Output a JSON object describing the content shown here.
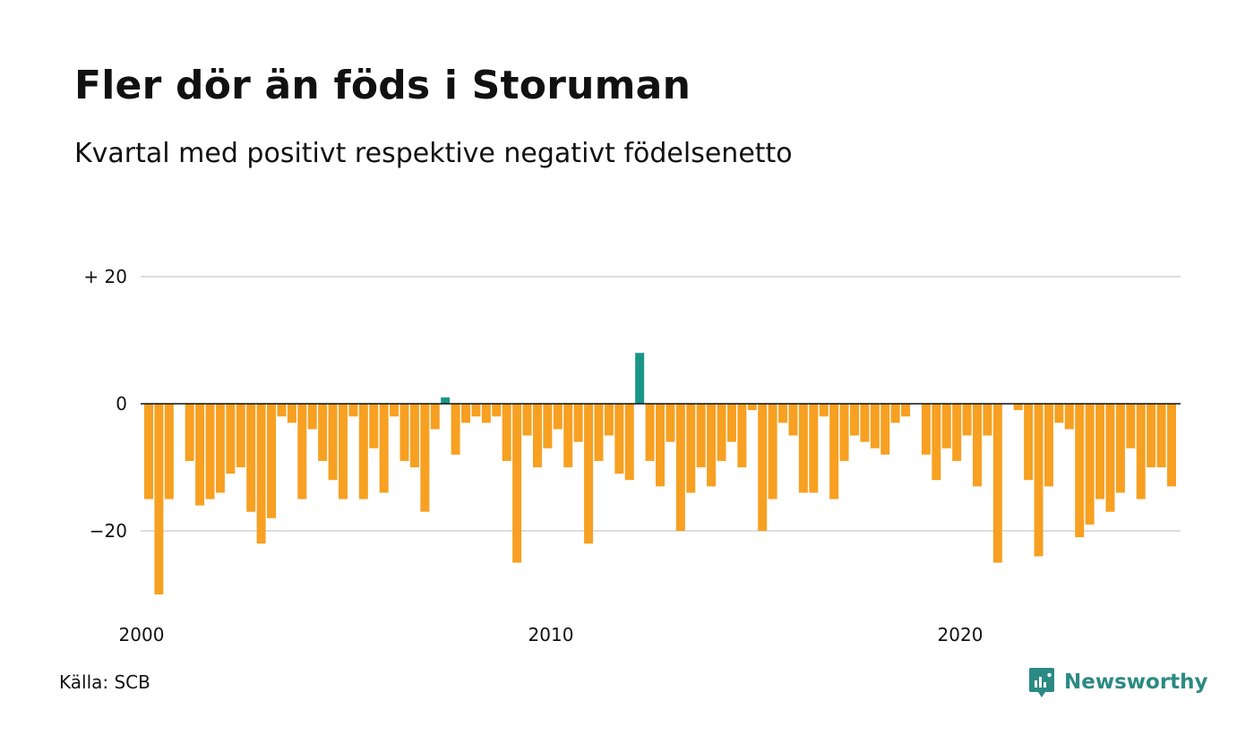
{
  "header": {
    "title": "Fler dör än föds i Storuman",
    "subtitle": "Kvartal med positivt respektive negativt födelsenetto"
  },
  "footer": {
    "source": "Källa: SCB",
    "brand": "Newsworthy",
    "brand_icon": "newsworthy-logo-icon"
  },
  "colors": {
    "positive": "#1a9688",
    "negative": "#f7a021",
    "grid": "#dddddd",
    "zero_line": "#111111",
    "brand": "#2b8a83"
  },
  "chart_data": {
    "type": "bar",
    "title": "Fler dör än föds i Storuman",
    "subtitle": "Kvartal med positivt respektive negativt födelsenetto",
    "xlabel": "",
    "ylabel": "",
    "ylim": [
      -30,
      30
    ],
    "yticks": [
      {
        "value": 20,
        "label": "+ 20"
      },
      {
        "value": 0,
        "label": "0"
      },
      {
        "value": -20,
        "label": "−20"
      }
    ],
    "xticks": [
      {
        "year": 2000,
        "label": "2000"
      },
      {
        "year": 2010,
        "label": "2010"
      },
      {
        "year": 2020,
        "label": "2020"
      }
    ],
    "grid": true,
    "legend": "none",
    "first_period": "2000 Q1",
    "frequency": "quarterly",
    "values": [
      -15,
      -30,
      -15,
      0,
      -9,
      -16,
      -15,
      -14,
      -11,
      -10,
      -17,
      -22,
      -18,
      -2,
      -3,
      -15,
      -4,
      -9,
      -12,
      -15,
      -2,
      -15,
      -7,
      -14,
      -2,
      -9,
      -10,
      -17,
      -4,
      1,
      -8,
      -3,
      -2,
      -3,
      -2,
      -9,
      -25,
      -5,
      -10,
      -7,
      -4,
      -10,
      -6,
      -22,
      -9,
      -5,
      -11,
      -12,
      8,
      -9,
      -13,
      -6,
      -20,
      -14,
      -10,
      -13,
      -9,
      -6,
      -10,
      -1,
      -20,
      -15,
      -3,
      -5,
      -14,
      -14,
      -2,
      -15,
      -9,
      -5,
      -6,
      -7,
      -8,
      -3,
      -2,
      0,
      -8,
      -12,
      -7,
      -9,
      -5,
      -13,
      -5,
      -25,
      0,
      -1,
      -12,
      -24,
      -13,
      -3,
      -4,
      -21,
      -19,
      -15,
      -17,
      -14,
      -7,
      -15,
      -10,
      -10,
      -13
    ]
  }
}
